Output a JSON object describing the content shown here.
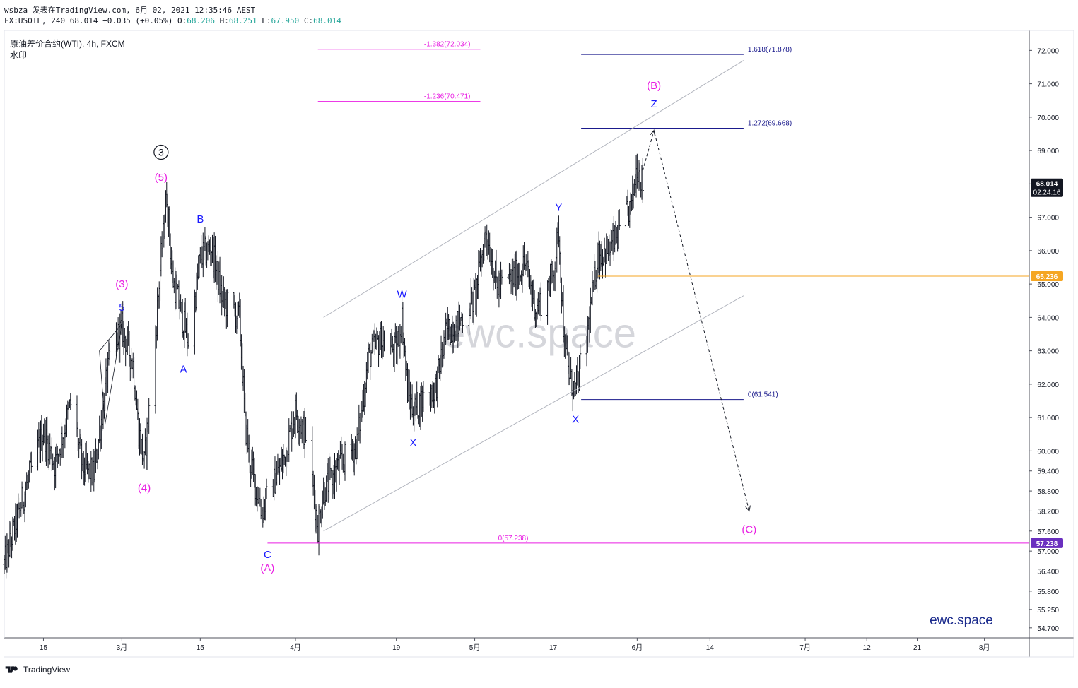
{
  "header": {
    "line1": "wsbza 发表在TradingView.com, 6月 02, 2021 12:35:46 AEST",
    "line2_prefix": "FX:USOIL, 240 68.014 +0.035 (+0.05%) ",
    "ohlc": [
      {
        "label": "O:",
        "value": "68.206"
      },
      {
        "label": "H:",
        "value": "68.251"
      },
      {
        "label": "L:",
        "value": "67.950"
      },
      {
        "label": "C:",
        "value": "68.014"
      }
    ]
  },
  "symbol": {
    "title": "原油差价合约(WTI), 4h, FXCM",
    "subtitle": "水印"
  },
  "watermark": "ewc.space",
  "brand": "ewc.space",
  "footer": {
    "logo_text": "TradingView"
  },
  "colors": {
    "bars": "#131722",
    "blue_label": "#1a1aff",
    "magenta_label": "#e91ee3",
    "fib_navy": "#1a1a8c",
    "fib_magenta": "#e91ee3",
    "horizontal_orange": "#f5a623",
    "channel": "#b2b5be",
    "price_tag_dark": "#131722",
    "price_tag_orange": "#f5a623",
    "price_tag_purple": "#6a2fbf"
  },
  "chart_data": {
    "type": "candlestick",
    "symbol": "FX:USOIL",
    "timeframe": "240",
    "y_axis": {
      "ticks": [
        "72.000",
        "71.000",
        "70.000",
        "69.000",
        "68.000",
        "67.000",
        "66.000",
        "65.000",
        "64.000",
        "63.000",
        "62.000",
        "61.000",
        "60.000",
        "59.400",
        "58.800",
        "58.200",
        "57.600",
        "57.000",
        "56.400",
        "55.800",
        "55.250",
        "54.700"
      ],
      "range": [
        54.4,
        72.6
      ]
    },
    "x_axis": {
      "ticks": [
        "15",
        "3月",
        "15",
        "4月",
        "19",
        "5月",
        "17",
        "6月",
        "14",
        "7月",
        "12",
        "21",
        "8月"
      ],
      "range": [
        "2021-02-08",
        "2021-08-10"
      ]
    },
    "price_path": [
      {
        "t": "2021-02-08",
        "p": 56.6
      },
      {
        "t": "2021-02-11",
        "p": 58.4
      },
      {
        "t": "2021-02-15",
        "p": 60.6
      },
      {
        "t": "2021-02-17",
        "p": 59.6
      },
      {
        "t": "2021-02-20",
        "p": 61.5
      },
      {
        "t": "2021-02-22",
        "p": 59.5
      },
      {
        "t": "2021-02-24",
        "p": 59.3
      },
      {
        "t": "2021-02-27",
        "p": 63.0
      },
      {
        "t": "2021-03-01",
        "p": 63.7
      },
      {
        "t": "2021-03-03",
        "p": 62.6
      },
      {
        "t": "2021-03-04",
        "p": 60.6
      },
      {
        "t": "2021-03-05",
        "p": 59.6
      },
      {
        "t": "2021-03-07",
        "p": 63.5
      },
      {
        "t": "2021-03-08",
        "p": 65.8
      },
      {
        "t": "2021-03-09",
        "p": 67.7
      },
      {
        "t": "2021-03-10",
        "p": 65.2
      },
      {
        "t": "2021-03-13",
        "p": 63.2
      },
      {
        "t": "2021-03-15",
        "p": 65.8
      },
      {
        "t": "2021-03-17",
        "p": 66.1
      },
      {
        "t": "2021-03-19",
        "p": 64.5
      },
      {
        "t": "2021-03-22",
        "p": 64.0
      },
      {
        "t": "2021-03-23",
        "p": 60.8
      },
      {
        "t": "2021-03-24",
        "p": 59.6
      },
      {
        "t": "2021-03-26",
        "p": 58.2
      },
      {
        "t": "2021-03-30",
        "p": 59.8
      },
      {
        "t": "2021-04-01",
        "p": 61.2
      },
      {
        "t": "2021-04-03",
        "p": 60.4
      },
      {
        "t": "2021-04-05",
        "p": 57.7
      },
      {
        "t": "2021-04-06",
        "p": 58.8
      },
      {
        "t": "2021-04-09",
        "p": 59.6
      },
      {
        "t": "2021-04-12",
        "p": 60.2
      },
      {
        "t": "2021-04-14",
        "p": 62.8
      },
      {
        "t": "2021-04-16",
        "p": 63.3
      },
      {
        "t": "2021-04-19",
        "p": 63.0
      },
      {
        "t": "2021-04-20",
        "p": 64.0
      },
      {
        "t": "2021-04-21",
        "p": 61.8
      },
      {
        "t": "2021-04-22",
        "p": 61.2
      },
      {
        "t": "2021-04-24",
        "p": 61.6
      },
      {
        "t": "2021-04-26",
        "p": 61.9
      },
      {
        "t": "2021-04-28",
        "p": 63.6
      },
      {
        "t": "2021-04-30",
        "p": 63.8
      },
      {
        "t": "2021-05-03",
        "p": 64.6
      },
      {
        "t": "2021-05-05",
        "p": 66.6
      },
      {
        "t": "2021-05-07",
        "p": 64.9
      },
      {
        "t": "2021-05-10",
        "p": 65.2
      },
      {
        "t": "2021-05-12",
        "p": 65.6
      },
      {
        "t": "2021-05-14",
        "p": 64.2
      },
      {
        "t": "2021-05-17",
        "p": 65.3
      },
      {
        "t": "2021-05-18",
        "p": 66.6
      },
      {
        "t": "2021-05-19",
        "p": 63.2
      },
      {
        "t": "2021-05-20",
        "p": 62.1
      },
      {
        "t": "2021-05-21",
        "p": 61.8
      },
      {
        "t": "2021-05-23",
        "p": 63.4
      },
      {
        "t": "2021-05-25",
        "p": 65.9
      },
      {
        "t": "2021-05-27",
        "p": 66.0
      },
      {
        "t": "2021-05-29",
        "p": 66.6
      },
      {
        "t": "2021-05-31",
        "p": 67.4
      },
      {
        "t": "2021-06-01",
        "p": 68.6
      },
      {
        "t": "2021-06-02",
        "p": 68.0
      }
    ],
    "last_price": "68.014",
    "countdown": "02:24:16",
    "fib_levels": [
      {
        "label": "-1.382(72.034)",
        "price": 72.034,
        "color": "#e91ee3",
        "from": "2021-04-05",
        "to": "2021-05-04"
      },
      {
        "label": "-1.236(70.471)",
        "price": 70.471,
        "color": "#e91ee3",
        "from": "2021-04-05",
        "to": "2021-05-04"
      },
      {
        "label": "1.618(71.878)",
        "price": 71.878,
        "color": "#1a1a8c",
        "from": "2021-05-22",
        "to": "2021-06-20"
      },
      {
        "label": "1.272(69.668)",
        "price": 69.668,
        "color": "#1a1a8c",
        "from": "2021-05-22",
        "to": "2021-06-20"
      },
      {
        "label": "0(61.541)",
        "price": 61.541,
        "color": "#1a1a8c",
        "from": "2021-05-22",
        "to": "2021-06-20"
      },
      {
        "label": "0(57.238)",
        "price": 57.238,
        "color": "#e91ee3",
        "from": "2021-03-27",
        "to": "2021-08-10"
      }
    ],
    "horizontal_lines": [
      {
        "price": 65.236,
        "color": "#f5a623",
        "from": "2021-05-25",
        "tag": "65.236"
      },
      {
        "tag": "57.238",
        "color": "#6a2fbf",
        "price": 57.238
      }
    ],
    "channel": {
      "upper": [
        {
          "t": "2021-04-06",
          "p": 64.0
        },
        {
          "t": "2021-06-20",
          "p": 71.7
        }
      ],
      "lower": [
        {
          "t": "2021-04-06",
          "p": 57.6
        },
        {
          "t": "2021-06-20",
          "p": 64.65
        }
      ]
    },
    "projection": [
      {
        "t": "2021-06-02",
        "p": 68.4
      },
      {
        "t": "2021-06-04",
        "p": 69.6
      },
      {
        "t": "2021-06-21",
        "p": 58.2
      }
    ],
    "wave_labels": [
      {
        "text": "③",
        "t": "2021-03-08",
        "p": 68.95,
        "color": "#131722",
        "circled": true
      },
      {
        "text": "(5)",
        "t": "2021-03-08",
        "p": 68.2,
        "color": "#e91ee3"
      },
      {
        "text": "B",
        "t": "2021-03-15",
        "p": 66.95,
        "color": "#1a1aff"
      },
      {
        "text": "(3)",
        "t": "2021-03-01",
        "p": 65.0,
        "color": "#e91ee3"
      },
      {
        "text": "5",
        "t": "2021-03-01",
        "p": 64.3,
        "color": "#1a1aff"
      },
      {
        "text": "A",
        "t": "2021-03-12",
        "p": 62.45,
        "color": "#1a1aff"
      },
      {
        "text": "(4)",
        "t": "2021-03-05",
        "p": 58.9,
        "color": "#e91ee3"
      },
      {
        "text": "C",
        "t": "2021-03-27",
        "p": 56.9,
        "color": "#1a1aff"
      },
      {
        "text": "(A)",
        "t": "2021-03-27",
        "p": 56.5,
        "color": "#e91ee3"
      },
      {
        "text": "W",
        "t": "2021-04-20",
        "p": 64.7,
        "color": "#1a1aff"
      },
      {
        "text": "X",
        "t": "2021-04-22",
        "p": 60.25,
        "color": "#1a1aff"
      },
      {
        "text": "Y",
        "t": "2021-05-18",
        "p": 67.3,
        "color": "#1a1aff"
      },
      {
        "text": "X",
        "t": "2021-05-21",
        "p": 60.95,
        "color": "#1a1aff"
      },
      {
        "text": "(B)",
        "t": "2021-06-04",
        "p": 70.95,
        "color": "#e91ee3"
      },
      {
        "text": "Z",
        "t": "2021-06-04",
        "p": 70.4,
        "color": "#1a1aff"
      },
      {
        "text": "(C)",
        "t": "2021-06-21",
        "p": 57.65,
        "color": "#e91ee3"
      }
    ]
  }
}
